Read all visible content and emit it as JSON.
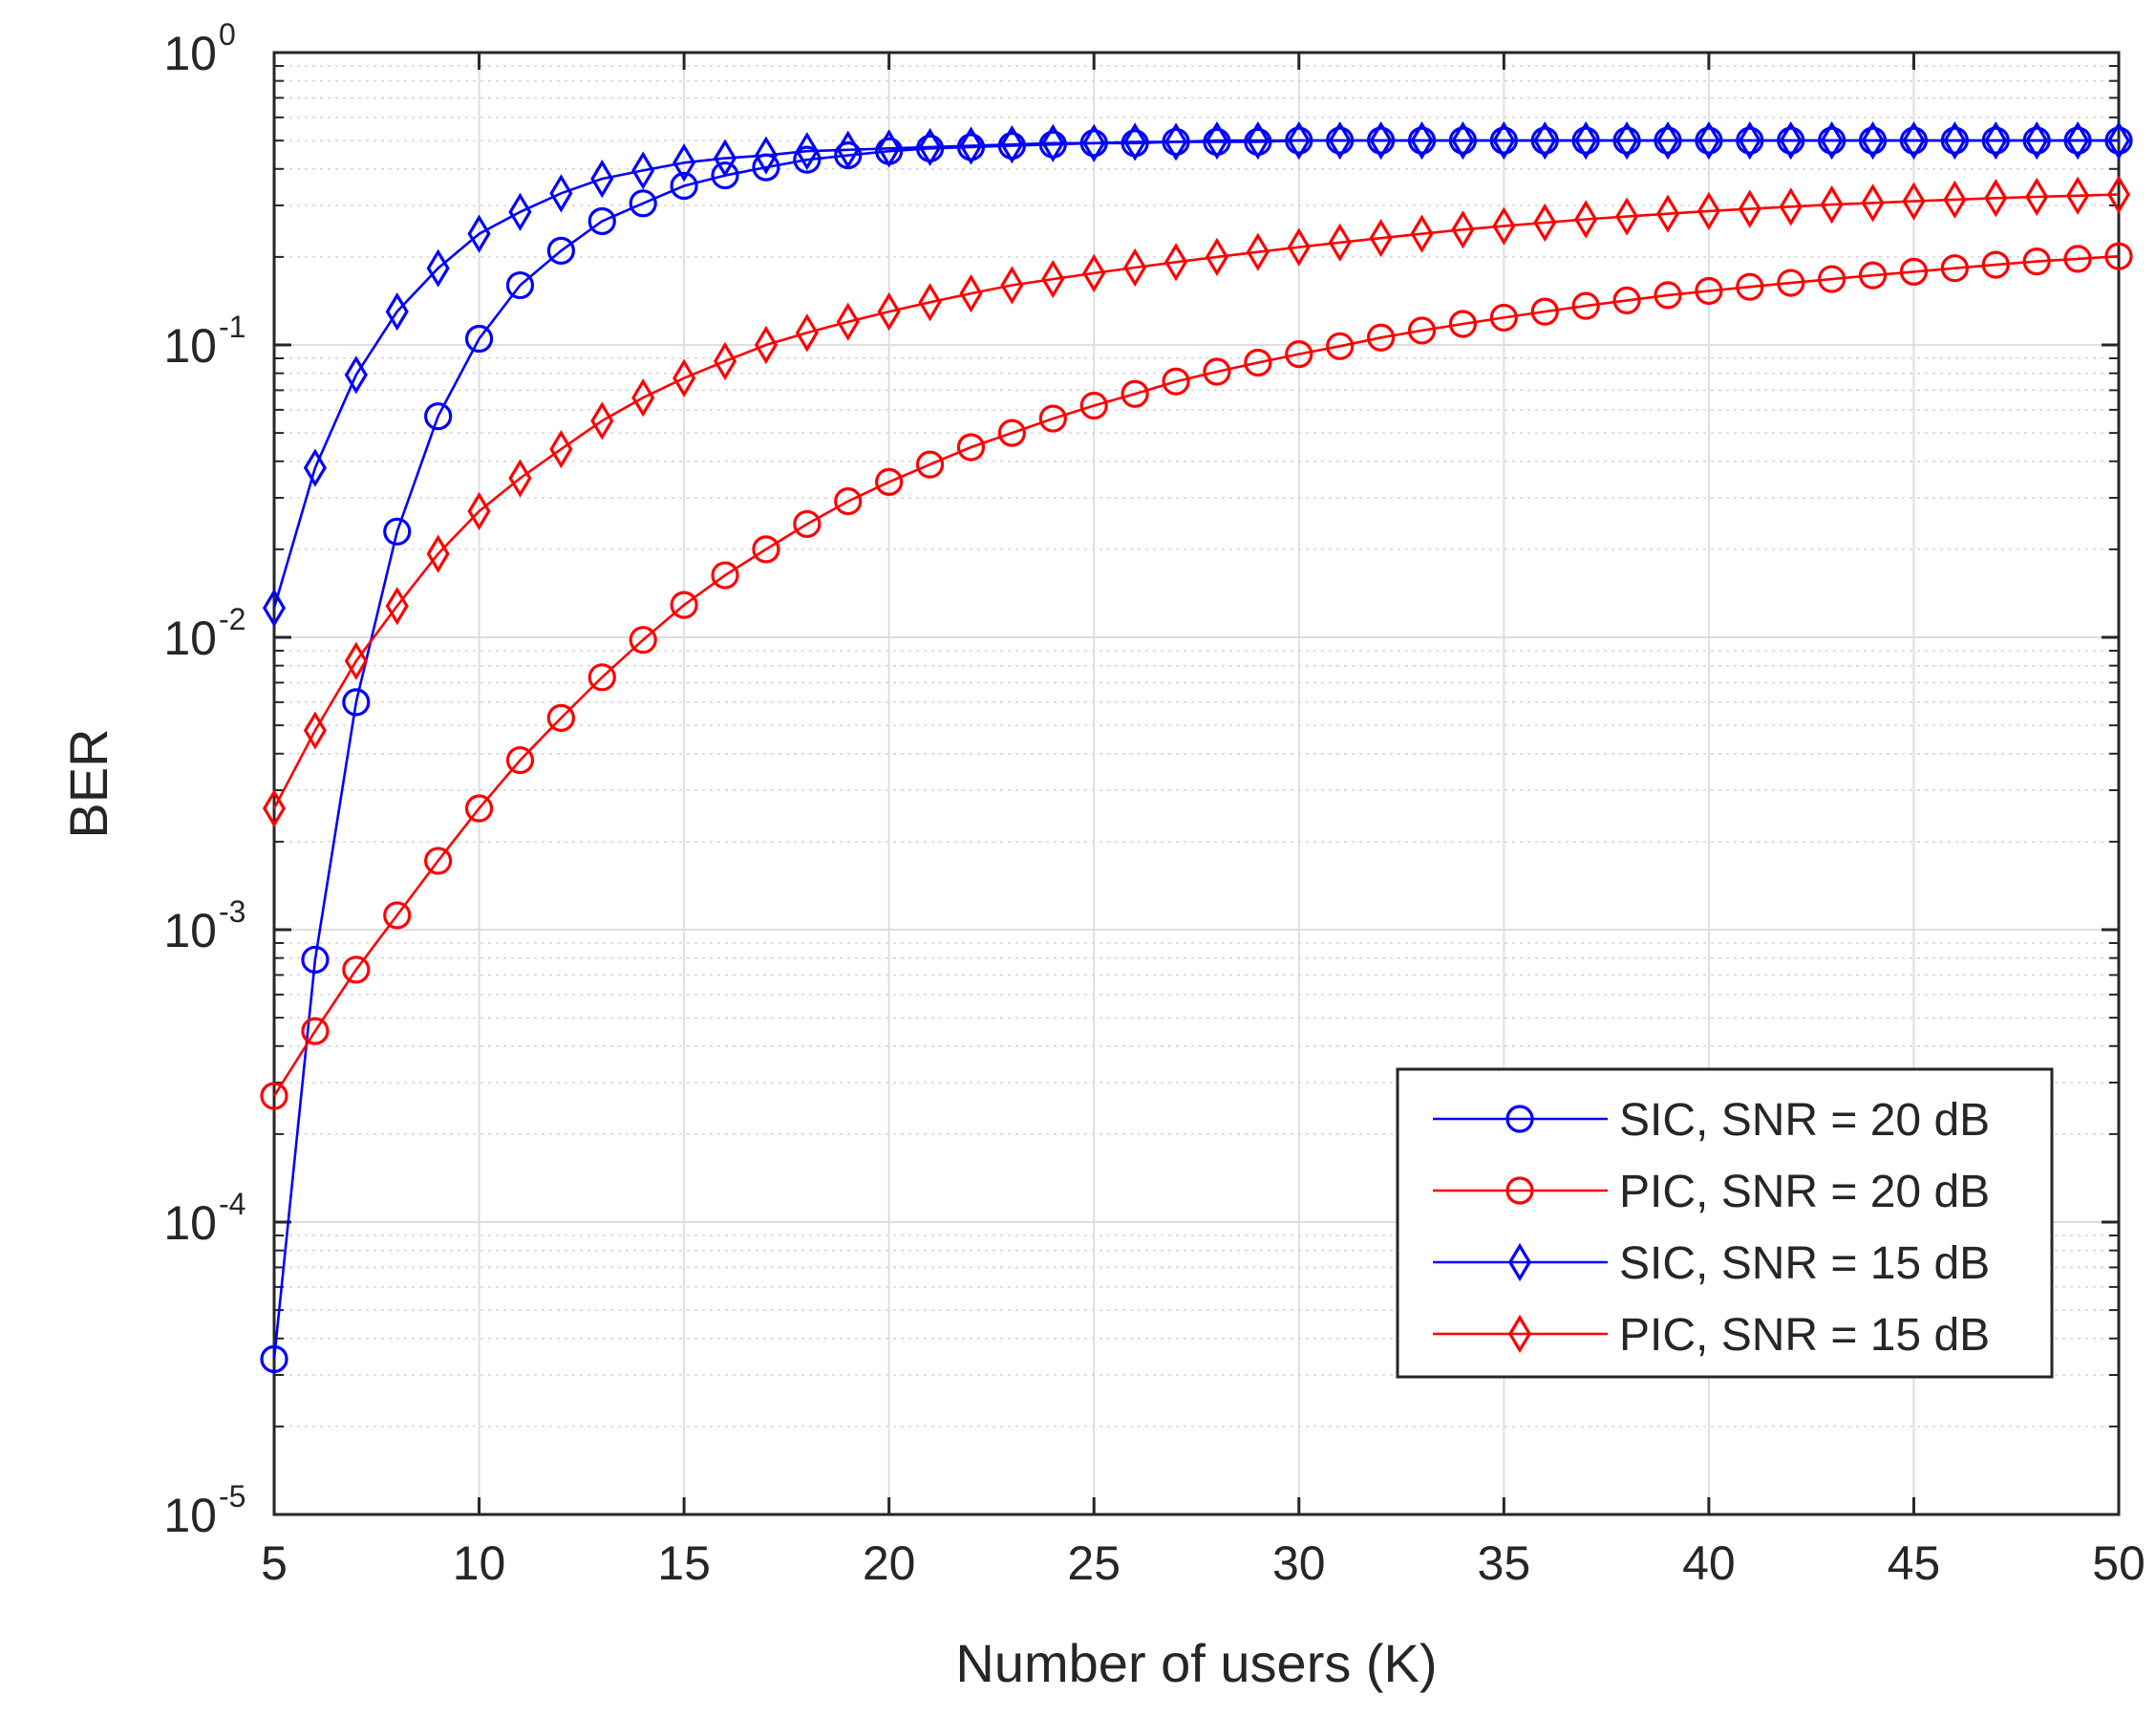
{
  "chart_data": {
    "type": "line",
    "title": "",
    "xlabel": "Number of users (K)",
    "ylabel": "BER",
    "xlim": [
      5,
      50
    ],
    "ylim": [
      1e-05,
      1
    ],
    "yscale": "log",
    "grid": true,
    "minor_grid": true,
    "legend_position": "lower-right",
    "x_ticks": [
      5,
      10,
      15,
      20,
      25,
      30,
      35,
      40,
      45,
      50
    ],
    "x_tick_labels": [
      "5",
      "10",
      "15",
      "20",
      "25",
      "30",
      "35",
      "40",
      "45",
      "50"
    ],
    "y_ticks": [
      {
        "value": 1e-05,
        "base": "10",
        "exp": "-5"
      },
      {
        "value": 0.0001,
        "base": "10",
        "exp": "-4"
      },
      {
        "value": 0.001,
        "base": "10",
        "exp": "-3"
      },
      {
        "value": 0.01,
        "base": "10",
        "exp": "-2"
      },
      {
        "value": 0.1,
        "base": "10",
        "exp": "-1"
      },
      {
        "value": 1,
        "base": "10",
        "exp": "0"
      }
    ],
    "x": [
      5,
      6,
      7,
      8,
      9,
      10,
      11,
      12,
      13,
      14,
      15,
      16,
      17,
      18,
      19,
      20,
      21,
      22,
      23,
      24,
      25,
      26,
      27,
      28,
      29,
      30,
      31,
      32,
      33,
      34,
      35,
      36,
      37,
      38,
      39,
      40,
      41,
      42,
      43,
      44,
      45,
      46,
      47,
      48,
      49,
      50
    ],
    "series": [
      {
        "name": "SIC, SNR = 20 dB",
        "color": "#0000ff",
        "marker": "circle",
        "values": [
          3.4e-05,
          0.00079,
          0.006,
          0.023,
          0.057,
          0.105,
          0.16,
          0.21,
          0.265,
          0.305,
          0.35,
          0.38,
          0.405,
          0.43,
          0.445,
          0.46,
          0.47,
          0.475,
          0.48,
          0.485,
          0.49,
          0.49,
          0.495,
          0.495,
          0.495,
          0.5,
          0.5,
          0.5,
          0.5,
          0.5,
          0.5,
          0.5,
          0.5,
          0.5,
          0.5,
          0.5,
          0.5,
          0.5,
          0.5,
          0.5,
          0.5,
          0.5,
          0.5,
          0.5,
          0.5,
          0.5
        ]
      },
      {
        "name": "PIC, SNR = 20 dB",
        "color": "#ff0000",
        "marker": "circle",
        "values": [
          0.00027,
          0.00045,
          0.00073,
          0.00112,
          0.00172,
          0.0026,
          0.0038,
          0.0053,
          0.0073,
          0.0098,
          0.0129,
          0.0163,
          0.02,
          0.0244,
          0.0292,
          0.034,
          0.039,
          0.0447,
          0.05,
          0.056,
          0.062,
          0.068,
          0.075,
          0.081,
          0.087,
          0.093,
          0.099,
          0.106,
          0.112,
          0.118,
          0.124,
          0.13,
          0.136,
          0.142,
          0.148,
          0.153,
          0.158,
          0.163,
          0.168,
          0.173,
          0.178,
          0.183,
          0.188,
          0.193,
          0.197,
          0.201
        ]
      },
      {
        "name": "SIC, SNR = 15 dB",
        "color": "#0000ff",
        "marker": "diamond",
        "values": [
          0.0126,
          0.038,
          0.079,
          0.13,
          0.183,
          0.24,
          0.285,
          0.33,
          0.37,
          0.395,
          0.42,
          0.435,
          0.445,
          0.46,
          0.465,
          0.47,
          0.475,
          0.48,
          0.485,
          0.49,
          0.49,
          0.495,
          0.495,
          0.5,
          0.5,
          0.5,
          0.5,
          0.5,
          0.5,
          0.5,
          0.5,
          0.5,
          0.5,
          0.5,
          0.5,
          0.5,
          0.5,
          0.5,
          0.5,
          0.5,
          0.5,
          0.5,
          0.5,
          0.5,
          0.5,
          0.5
        ]
      },
      {
        "name": "PIC, SNR = 15 dB",
        "color": "#ff0000",
        "marker": "diamond",
        "values": [
          0.0026,
          0.0048,
          0.0083,
          0.0128,
          0.0193,
          0.027,
          0.035,
          0.044,
          0.055,
          0.066,
          0.077,
          0.088,
          0.1,
          0.11,
          0.12,
          0.13,
          0.14,
          0.15,
          0.16,
          0.168,
          0.176,
          0.184,
          0.192,
          0.2,
          0.208,
          0.216,
          0.224,
          0.232,
          0.24,
          0.248,
          0.255,
          0.262,
          0.269,
          0.275,
          0.281,
          0.287,
          0.292,
          0.297,
          0.302,
          0.306,
          0.31,
          0.314,
          0.318,
          0.321,
          0.324,
          0.327
        ]
      }
    ]
  }
}
